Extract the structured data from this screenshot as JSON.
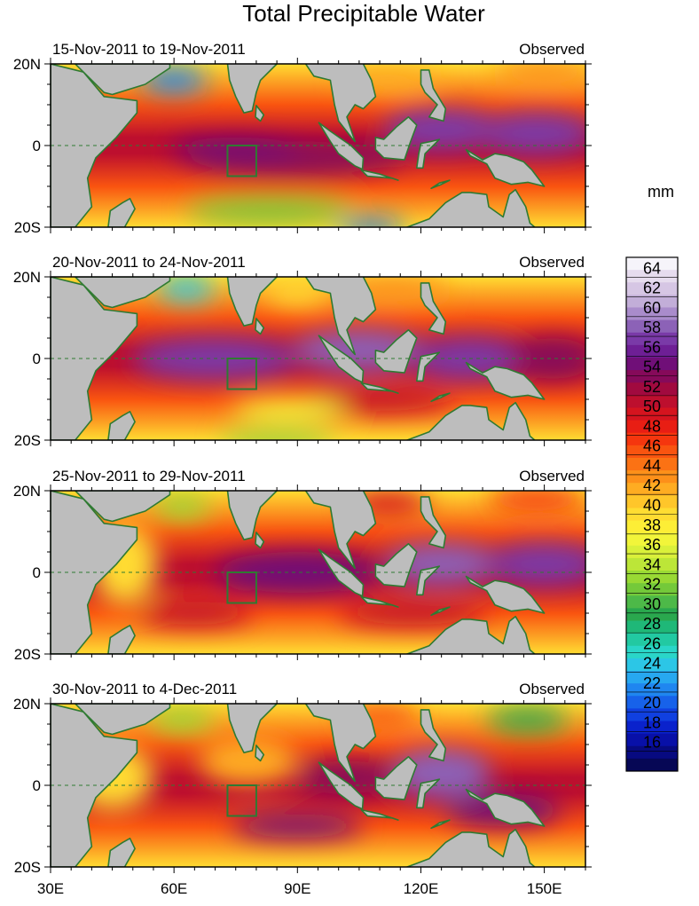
{
  "chart_data": {
    "type": "heatmap",
    "title": "Total Precipitable Water",
    "units": "mm",
    "x_ticks": [
      "30E",
      "60E",
      "90E",
      "120E",
      "150E"
    ],
    "x_tick_values": [
      30,
      60,
      90,
      120,
      150
    ],
    "xlim": [
      30,
      160
    ],
    "y_ticks": [
      "20N",
      "0",
      "20S"
    ],
    "y_tick_values": [
      20,
      0,
      -20
    ],
    "ylim": [
      -20,
      20
    ],
    "colorbar_labels": [
      "64",
      "62",
      "60",
      "58",
      "56",
      "54",
      "52",
      "50",
      "48",
      "46",
      "44",
      "42",
      "40",
      "38",
      "36",
      "34",
      "32",
      "30",
      "28",
      "26",
      "24",
      "22",
      "20",
      "18",
      "16"
    ],
    "colorbar_values": [
      64,
      62,
      60,
      58,
      56,
      54,
      52,
      50,
      48,
      46,
      44,
      42,
      40,
      38,
      36,
      34,
      32,
      30,
      28,
      26,
      24,
      22,
      20,
      18,
      16
    ],
    "colorbar_range": [
      14,
      66
    ],
    "colorbar_colors": [
      "#f6f4fa",
      "#e6dcee",
      "#d6c6e4",
      "#c2aed8",
      "#a98ccb",
      "#8c62b7",
      "#7a3aa8",
      "#6e1f95",
      "#700f78",
      "#860a5a",
      "#a10a3f",
      "#bd0f2e",
      "#d5141f",
      "#e81e14",
      "#f5360e",
      "#f95410",
      "#fb7214",
      "#fd901a",
      "#feac22",
      "#ffc62a",
      "#ffdc32",
      "#fdee36",
      "#f2f53a",
      "#daf03a",
      "#bce638",
      "#99d934",
      "#74c93a",
      "#4db948",
      "#2aa84e",
      "#1fb878",
      "#22c9a2",
      "#2ad6c8",
      "#2cc6e6",
      "#27a8f0",
      "#1f86f0",
      "#1762ea",
      "#1040e0",
      "#0a22cc",
      "#0810a8",
      "#070a80",
      "#060755"
    ],
    "panels": [
      {
        "period": "15-Nov-2011 to 19-Nov-2011",
        "label": "Observed",
        "features": [
          {
            "lon": 90,
            "lat": -3,
            "sx": 26,
            "sy": 4,
            "value": 54
          },
          {
            "lon": 125,
            "lat": 4,
            "sx": 14,
            "sy": 5,
            "value": 58
          },
          {
            "lon": 148,
            "lat": 3,
            "sx": 14,
            "sy": 5,
            "value": 58
          },
          {
            "lon": 75,
            "lat": -1,
            "sx": 16,
            "sy": 3,
            "value": 56
          },
          {
            "lon": 60,
            "lat": 16,
            "sx": 8,
            "sy": 3,
            "value": 22
          },
          {
            "lon": 112,
            "lat": 16,
            "sx": 12,
            "sy": 3,
            "value": 42
          },
          {
            "lon": 150,
            "lat": 18,
            "sx": 12,
            "sy": 3,
            "value": 44
          },
          {
            "lon": 83,
            "lat": -16,
            "sx": 20,
            "sy": 3,
            "value": 32
          },
          {
            "lon": 108,
            "lat": -20,
            "sx": 8,
            "sy": 2,
            "value": 20
          }
        ]
      },
      {
        "period": "20-Nov-2011 to 24-Nov-2011",
        "label": "Observed",
        "features": [
          {
            "lon": 70,
            "lat": 0,
            "sx": 20,
            "sy": 5,
            "value": 58
          },
          {
            "lon": 105,
            "lat": 2,
            "sx": 16,
            "sy": 5,
            "value": 60
          },
          {
            "lon": 132,
            "lat": 0,
            "sx": 14,
            "sy": 5,
            "value": 58
          },
          {
            "lon": 152,
            "lat": 0,
            "sx": 10,
            "sy": 5,
            "value": 54
          },
          {
            "lon": 110,
            "lat": -10,
            "sx": 18,
            "sy": 3,
            "value": 52
          },
          {
            "lon": 63,
            "lat": 17,
            "sx": 7,
            "sy": 3,
            "value": 24
          },
          {
            "lon": 90,
            "lat": 16,
            "sx": 8,
            "sy": 3,
            "value": 40
          },
          {
            "lon": 113,
            "lat": 17,
            "sx": 14,
            "sy": 3,
            "value": 44
          },
          {
            "lon": 88,
            "lat": -13,
            "sx": 14,
            "sy": 3,
            "value": 38
          },
          {
            "lon": 85,
            "lat": -20,
            "sx": 14,
            "sy": 2,
            "value": 32
          }
        ]
      },
      {
        "period": "25-Nov-2011 to 29-Nov-2011",
        "label": "Observed",
        "features": [
          {
            "lon": 90,
            "lat": 0,
            "sx": 20,
            "sy": 5,
            "value": 56
          },
          {
            "lon": 125,
            "lat": 2,
            "sx": 14,
            "sy": 5,
            "value": 60
          },
          {
            "lon": 150,
            "lat": 2,
            "sx": 14,
            "sy": 5,
            "value": 58
          },
          {
            "lon": 65,
            "lat": -10,
            "sx": 14,
            "sy": 3,
            "value": 52
          },
          {
            "lon": 118,
            "lat": -10,
            "sx": 18,
            "sy": 3,
            "value": 52
          },
          {
            "lon": 48,
            "lat": 2,
            "sx": 8,
            "sy": 10,
            "value": 40
          },
          {
            "lon": 62,
            "lat": 16,
            "sx": 7,
            "sy": 3,
            "value": 34
          },
          {
            "lon": 112,
            "lat": 17,
            "sx": 10,
            "sy": 3,
            "value": 50
          },
          {
            "lon": 148,
            "lat": 18,
            "sx": 12,
            "sy": 3,
            "value": 48
          }
        ]
      },
      {
        "period": "30-Nov-2011 to 4-Dec-2011",
        "label": "Observed",
        "features": [
          {
            "lon": 125,
            "lat": 3,
            "sx": 12,
            "sy": 6,
            "value": 60
          },
          {
            "lon": 102,
            "lat": 2,
            "sx": 12,
            "sy": 4,
            "value": 54
          },
          {
            "lon": 90,
            "lat": -10,
            "sx": 16,
            "sy": 3,
            "value": 56
          },
          {
            "lon": 140,
            "lat": -6,
            "sx": 14,
            "sy": 4,
            "value": 56
          },
          {
            "lon": 45,
            "lat": 2,
            "sx": 10,
            "sy": 8,
            "value": 40
          },
          {
            "lon": 78,
            "lat": 6,
            "sx": 12,
            "sy": 6,
            "value": 42
          },
          {
            "lon": 62,
            "lat": 16,
            "sx": 8,
            "sy": 3,
            "value": 34
          },
          {
            "lon": 146,
            "lat": 16,
            "sx": 10,
            "sy": 3,
            "value": 30
          },
          {
            "lon": 110,
            "lat": 17,
            "sx": 10,
            "sy": 3,
            "value": 46
          }
        ]
      }
    ]
  }
}
